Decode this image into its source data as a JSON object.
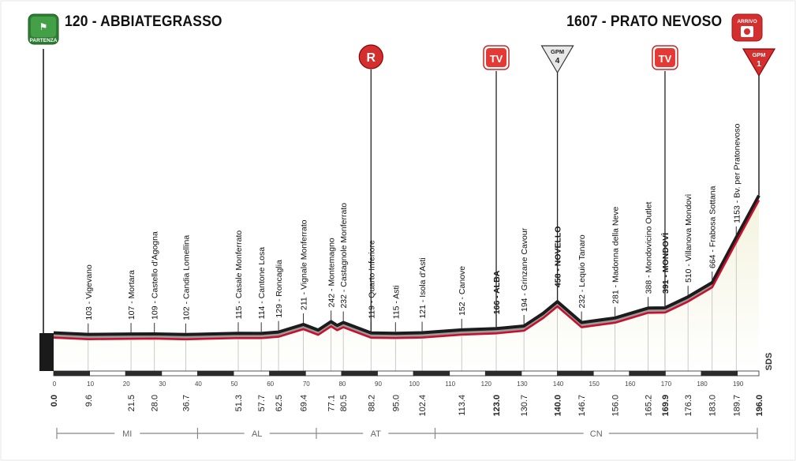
{
  "start": {
    "label": "120 - ABBIATEGRASSO",
    "badge": "PARTENZA"
  },
  "finish": {
    "label": "1607 - PRATO NEVOSO",
    "badge": "ARRIVO"
  },
  "side_label": "SDS",
  "markers": [
    {
      "type": "R",
      "label": "R",
      "km": 88.2
    },
    {
      "type": "TV",
      "label": "TV",
      "km": 123.0
    },
    {
      "type": "GPM",
      "label": "GPM",
      "category": "4",
      "km": 140.0
    },
    {
      "type": "TV",
      "label": "TV",
      "km": 169.9
    },
    {
      "type": "GPM",
      "label": "GPM",
      "category": "1",
      "km": 196.0
    }
  ],
  "regions": [
    {
      "label": "MI",
      "from_km": 0,
      "to_km": 40
    },
    {
      "label": "AL",
      "from_km": 40,
      "to_km": 73
    },
    {
      "label": "AT",
      "from_km": 73,
      "to_km": 106
    },
    {
      "label": "CN",
      "from_km": 106,
      "to_km": 196
    }
  ],
  "colors": {
    "profile_gray": "#9a9a9a",
    "profile_dark": "#1c1c1c",
    "red_line": "#c8102e",
    "hill_fill": "#f4f3df",
    "badge_green": "#2e7d32"
  },
  "chart_data": {
    "type": "area",
    "title": "",
    "xlabel": "",
    "ylabel": "",
    "xlim": [
      0,
      196
    ],
    "ylim": [
      0,
      1700
    ],
    "scale_ticks": [
      0,
      10,
      20,
      30,
      40,
      50,
      60,
      70,
      80,
      90,
      100,
      110,
      120,
      130,
      140,
      150,
      160,
      170,
      180,
      190
    ],
    "km_ticks": [
      "0.0",
      "9.6",
      "21.5",
      "28.0",
      "36.7",
      "51.3",
      "57.7",
      "62.5",
      "69.4",
      "77.1",
      "80.5",
      "88.2",
      "95.0",
      "102.4",
      "113.4",
      "123.0",
      "130.7",
      "140.0",
      "146.7",
      "156.0",
      "165.2",
      "169.9",
      "176.3",
      "183.0",
      "189.7",
      "196.0"
    ],
    "bold_km": [
      "0.0",
      "123.0",
      "140.0",
      "169.9",
      "196.0"
    ],
    "profile": [
      {
        "km": 0,
        "alt": 120
      },
      {
        "km": 9.6,
        "alt": 103
      },
      {
        "km": 21.5,
        "alt": 107
      },
      {
        "km": 28.0,
        "alt": 109
      },
      {
        "km": 36.7,
        "alt": 102
      },
      {
        "km": 51.3,
        "alt": 115
      },
      {
        "km": 57.7,
        "alt": 114
      },
      {
        "km": 62.5,
        "alt": 129
      },
      {
        "km": 69.4,
        "alt": 211
      },
      {
        "km": 73.5,
        "alt": 150
      },
      {
        "km": 77.1,
        "alt": 242
      },
      {
        "km": 78.8,
        "alt": 200
      },
      {
        "km": 80.5,
        "alt": 232
      },
      {
        "km": 88.2,
        "alt": 119
      },
      {
        "km": 95.0,
        "alt": 115
      },
      {
        "km": 102.4,
        "alt": 121
      },
      {
        "km": 113.4,
        "alt": 152
      },
      {
        "km": 123.0,
        "alt": 166
      },
      {
        "km": 130.7,
        "alt": 194
      },
      {
        "km": 136.0,
        "alt": 330
      },
      {
        "km": 140.0,
        "alt": 458
      },
      {
        "km": 146.7,
        "alt": 232
      },
      {
        "km": 156.0,
        "alt": 281
      },
      {
        "km": 165.2,
        "alt": 388
      },
      {
        "km": 169.9,
        "alt": 391
      },
      {
        "km": 176.3,
        "alt": 510
      },
      {
        "km": 183.0,
        "alt": 664
      },
      {
        "km": 189.7,
        "alt": 1153
      },
      {
        "km": 196.0,
        "alt": 1607
      }
    ],
    "places": [
      {
        "km": 9.6,
        "text": "103 - Vigevano",
        "bold": false
      },
      {
        "km": 21.5,
        "text": "107 - Mortara",
        "bold": false
      },
      {
        "km": 28.0,
        "text": "109 - Castello d'Agogna",
        "bold": false
      },
      {
        "km": 36.7,
        "text": "102 - Candia Lomellina",
        "bold": false
      },
      {
        "km": 51.3,
        "text": "115 - Casale Monferrato",
        "bold": false
      },
      {
        "km": 57.7,
        "text": "114 - Cantone Losa",
        "bold": false
      },
      {
        "km": 62.5,
        "text": "129 - Roncaglia",
        "bold": false
      },
      {
        "km": 69.4,
        "text": "211 - Vignale Monferrato",
        "bold": false
      },
      {
        "km": 77.1,
        "text": "242 - Montemagno",
        "bold": false
      },
      {
        "km": 80.5,
        "text": "232 - Castagnole Monferrato",
        "bold": false
      },
      {
        "km": 88.2,
        "text": "119 - Quarto Inferiore",
        "bold": false
      },
      {
        "km": 95.0,
        "text": "115 - Asti",
        "bold": false
      },
      {
        "km": 102.4,
        "text": "121 - Isola d'Asti",
        "bold": false
      },
      {
        "km": 113.4,
        "text": "152 - Canove",
        "bold": false
      },
      {
        "km": 123.0,
        "text": "166 - ALBA",
        "bold": true
      },
      {
        "km": 130.7,
        "text": "194 - Grinzane Cavour",
        "bold": false
      },
      {
        "km": 140.0,
        "text": "458 - NOVELLO",
        "bold": true
      },
      {
        "km": 146.7,
        "text": "232 - Lequio Tanaro",
        "bold": false
      },
      {
        "km": 156.0,
        "text": "281 - Madonna della Neve",
        "bold": false
      },
      {
        "km": 165.2,
        "text": "388 - Mondovicino Outlet",
        "bold": false
      },
      {
        "km": 169.9,
        "text": "391 - MONDOVÌ",
        "bold": true
      },
      {
        "km": 176.3,
        "text": "510 - Villanova Mondovì",
        "bold": false
      },
      {
        "km": 183.0,
        "text": "664 - Frabosa Sottana",
        "bold": false
      },
      {
        "km": 189.7,
        "text": "1153 - Bv. per Pratonevoso",
        "bold": false
      }
    ]
  }
}
